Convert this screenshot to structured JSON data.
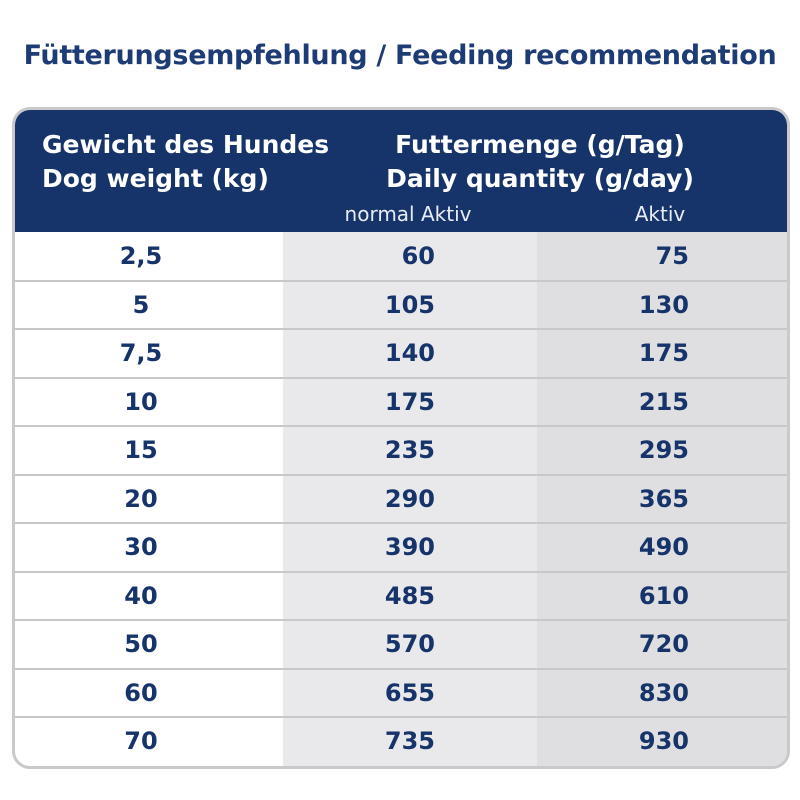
{
  "title": "Fütterungsempfehlung / Feeding recommendation",
  "table": {
    "header": {
      "weight": [
        "Gewicht des Hundes",
        "Dog weight (kg)"
      ],
      "quantity": [
        "Futtermenge (g/Tag)",
        "Daily quantity (g/day)"
      ],
      "subheaders": [
        "normal Aktiv",
        "Aktiv"
      ]
    },
    "rows": [
      [
        "2,5",
        60,
        75
      ],
      [
        "5",
        105,
        130
      ],
      [
        "7,5",
        140,
        175
      ],
      [
        "10",
        175,
        215
      ],
      [
        "15",
        235,
        295
      ],
      [
        "20",
        290,
        365
      ],
      [
        "30",
        390,
        490
      ],
      [
        "40",
        485,
        610
      ],
      [
        "50",
        570,
        720
      ],
      [
        "60",
        655,
        830
      ],
      [
        "70",
        735,
        930
      ]
    ]
  }
}
